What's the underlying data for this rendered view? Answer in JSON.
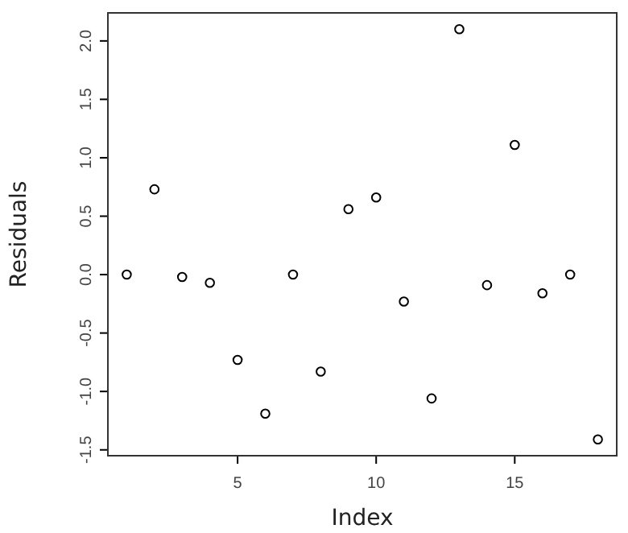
{
  "chart_data": {
    "type": "scatter",
    "xlabel": "Index",
    "ylabel": "Residuals",
    "x": [
      1,
      2,
      3,
      4,
      5,
      6,
      7,
      8,
      9,
      10,
      11,
      12,
      13,
      14,
      15,
      16,
      17,
      18
    ],
    "series": [
      {
        "color": "#000000",
        "values": [
          0.0,
          0.73,
          -0.02,
          -0.07,
          -0.73,
          -1.19,
          0.0,
          -0.83,
          0.56,
          0.66,
          -0.23,
          -1.06,
          2.1,
          -0.09,
          1.11,
          -0.16,
          0.0,
          -1.41
        ]
      }
    ],
    "xlim": [
      0.32,
      18.68
    ],
    "ylim": [
      -1.55,
      2.24
    ],
    "xticks": [
      5,
      10,
      15
    ],
    "yticks": [
      {
        "value": -1.5,
        "label": "-1.5"
      },
      {
        "value": -1.0,
        "label": "-1.0"
      },
      {
        "value": -0.5,
        "label": "-0.5"
      },
      {
        "value": 0,
        "label": "0.0"
      },
      {
        "value": 0.5,
        "label": "0.5"
      },
      {
        "value": 1.0,
        "label": "1.0"
      },
      {
        "value": 1.5,
        "label": "1.5"
      },
      {
        "value": 2.0,
        "label": "2.0"
      }
    ],
    "grid": false,
    "marker": "circle"
  }
}
